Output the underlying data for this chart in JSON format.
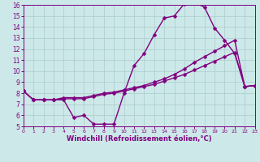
{
  "xlabel": "Windchill (Refroidissement éolien,°C)",
  "bg_color": "#cce8e8",
  "line_color": "#800080",
  "grid_color": "#aacccc",
  "xlim": [
    0,
    23
  ],
  "ylim": [
    5,
    16
  ],
  "xticks": [
    0,
    1,
    2,
    3,
    4,
    5,
    6,
    7,
    8,
    9,
    10,
    11,
    12,
    13,
    14,
    15,
    16,
    17,
    18,
    19,
    20,
    21,
    22,
    23
  ],
  "yticks": [
    5,
    6,
    7,
    8,
    9,
    10,
    11,
    12,
    13,
    14,
    15,
    16
  ],
  "line1_x": [
    0,
    1,
    2,
    3,
    4,
    5,
    6,
    7,
    8,
    9,
    10,
    11,
    12,
    13,
    14,
    15,
    16,
    17,
    18,
    19,
    20,
    21,
    22,
    23
  ],
  "line1_y": [
    8.2,
    7.4,
    7.4,
    7.4,
    7.4,
    5.8,
    6.0,
    5.2,
    5.2,
    5.2,
    8.0,
    10.5,
    11.6,
    13.3,
    14.8,
    15.0,
    16.1,
    16.2,
    15.8,
    13.9,
    12.8,
    11.6,
    8.6,
    8.7
  ],
  "line2_x": [
    0,
    1,
    2,
    3,
    4,
    5,
    6,
    7,
    8,
    9,
    10,
    11,
    12,
    13,
    14,
    15,
    16,
    17,
    18,
    19,
    20,
    21,
    22,
    23
  ],
  "line2_y": [
    8.2,
    7.4,
    7.4,
    7.4,
    7.6,
    7.6,
    7.6,
    7.8,
    8.0,
    8.1,
    8.3,
    8.5,
    8.7,
    9.0,
    9.3,
    9.7,
    10.2,
    10.8,
    11.3,
    11.8,
    12.3,
    12.8,
    8.6,
    8.7
  ],
  "line3_x": [
    0,
    1,
    2,
    3,
    4,
    5,
    6,
    7,
    8,
    9,
    10,
    11,
    12,
    13,
    14,
    15,
    16,
    17,
    18,
    19,
    20,
    21,
    22,
    23
  ],
  "line3_y": [
    8.2,
    7.4,
    7.4,
    7.4,
    7.5,
    7.5,
    7.5,
    7.7,
    7.9,
    8.0,
    8.2,
    8.4,
    8.6,
    8.8,
    9.1,
    9.4,
    9.7,
    10.1,
    10.5,
    10.9,
    11.3,
    11.7,
    8.6,
    8.7
  ],
  "markersize": 2.5,
  "linewidth": 1.0,
  "tick_fontsize_x": 4.5,
  "tick_fontsize_y": 5.5,
  "label_fontsize": 6.0
}
